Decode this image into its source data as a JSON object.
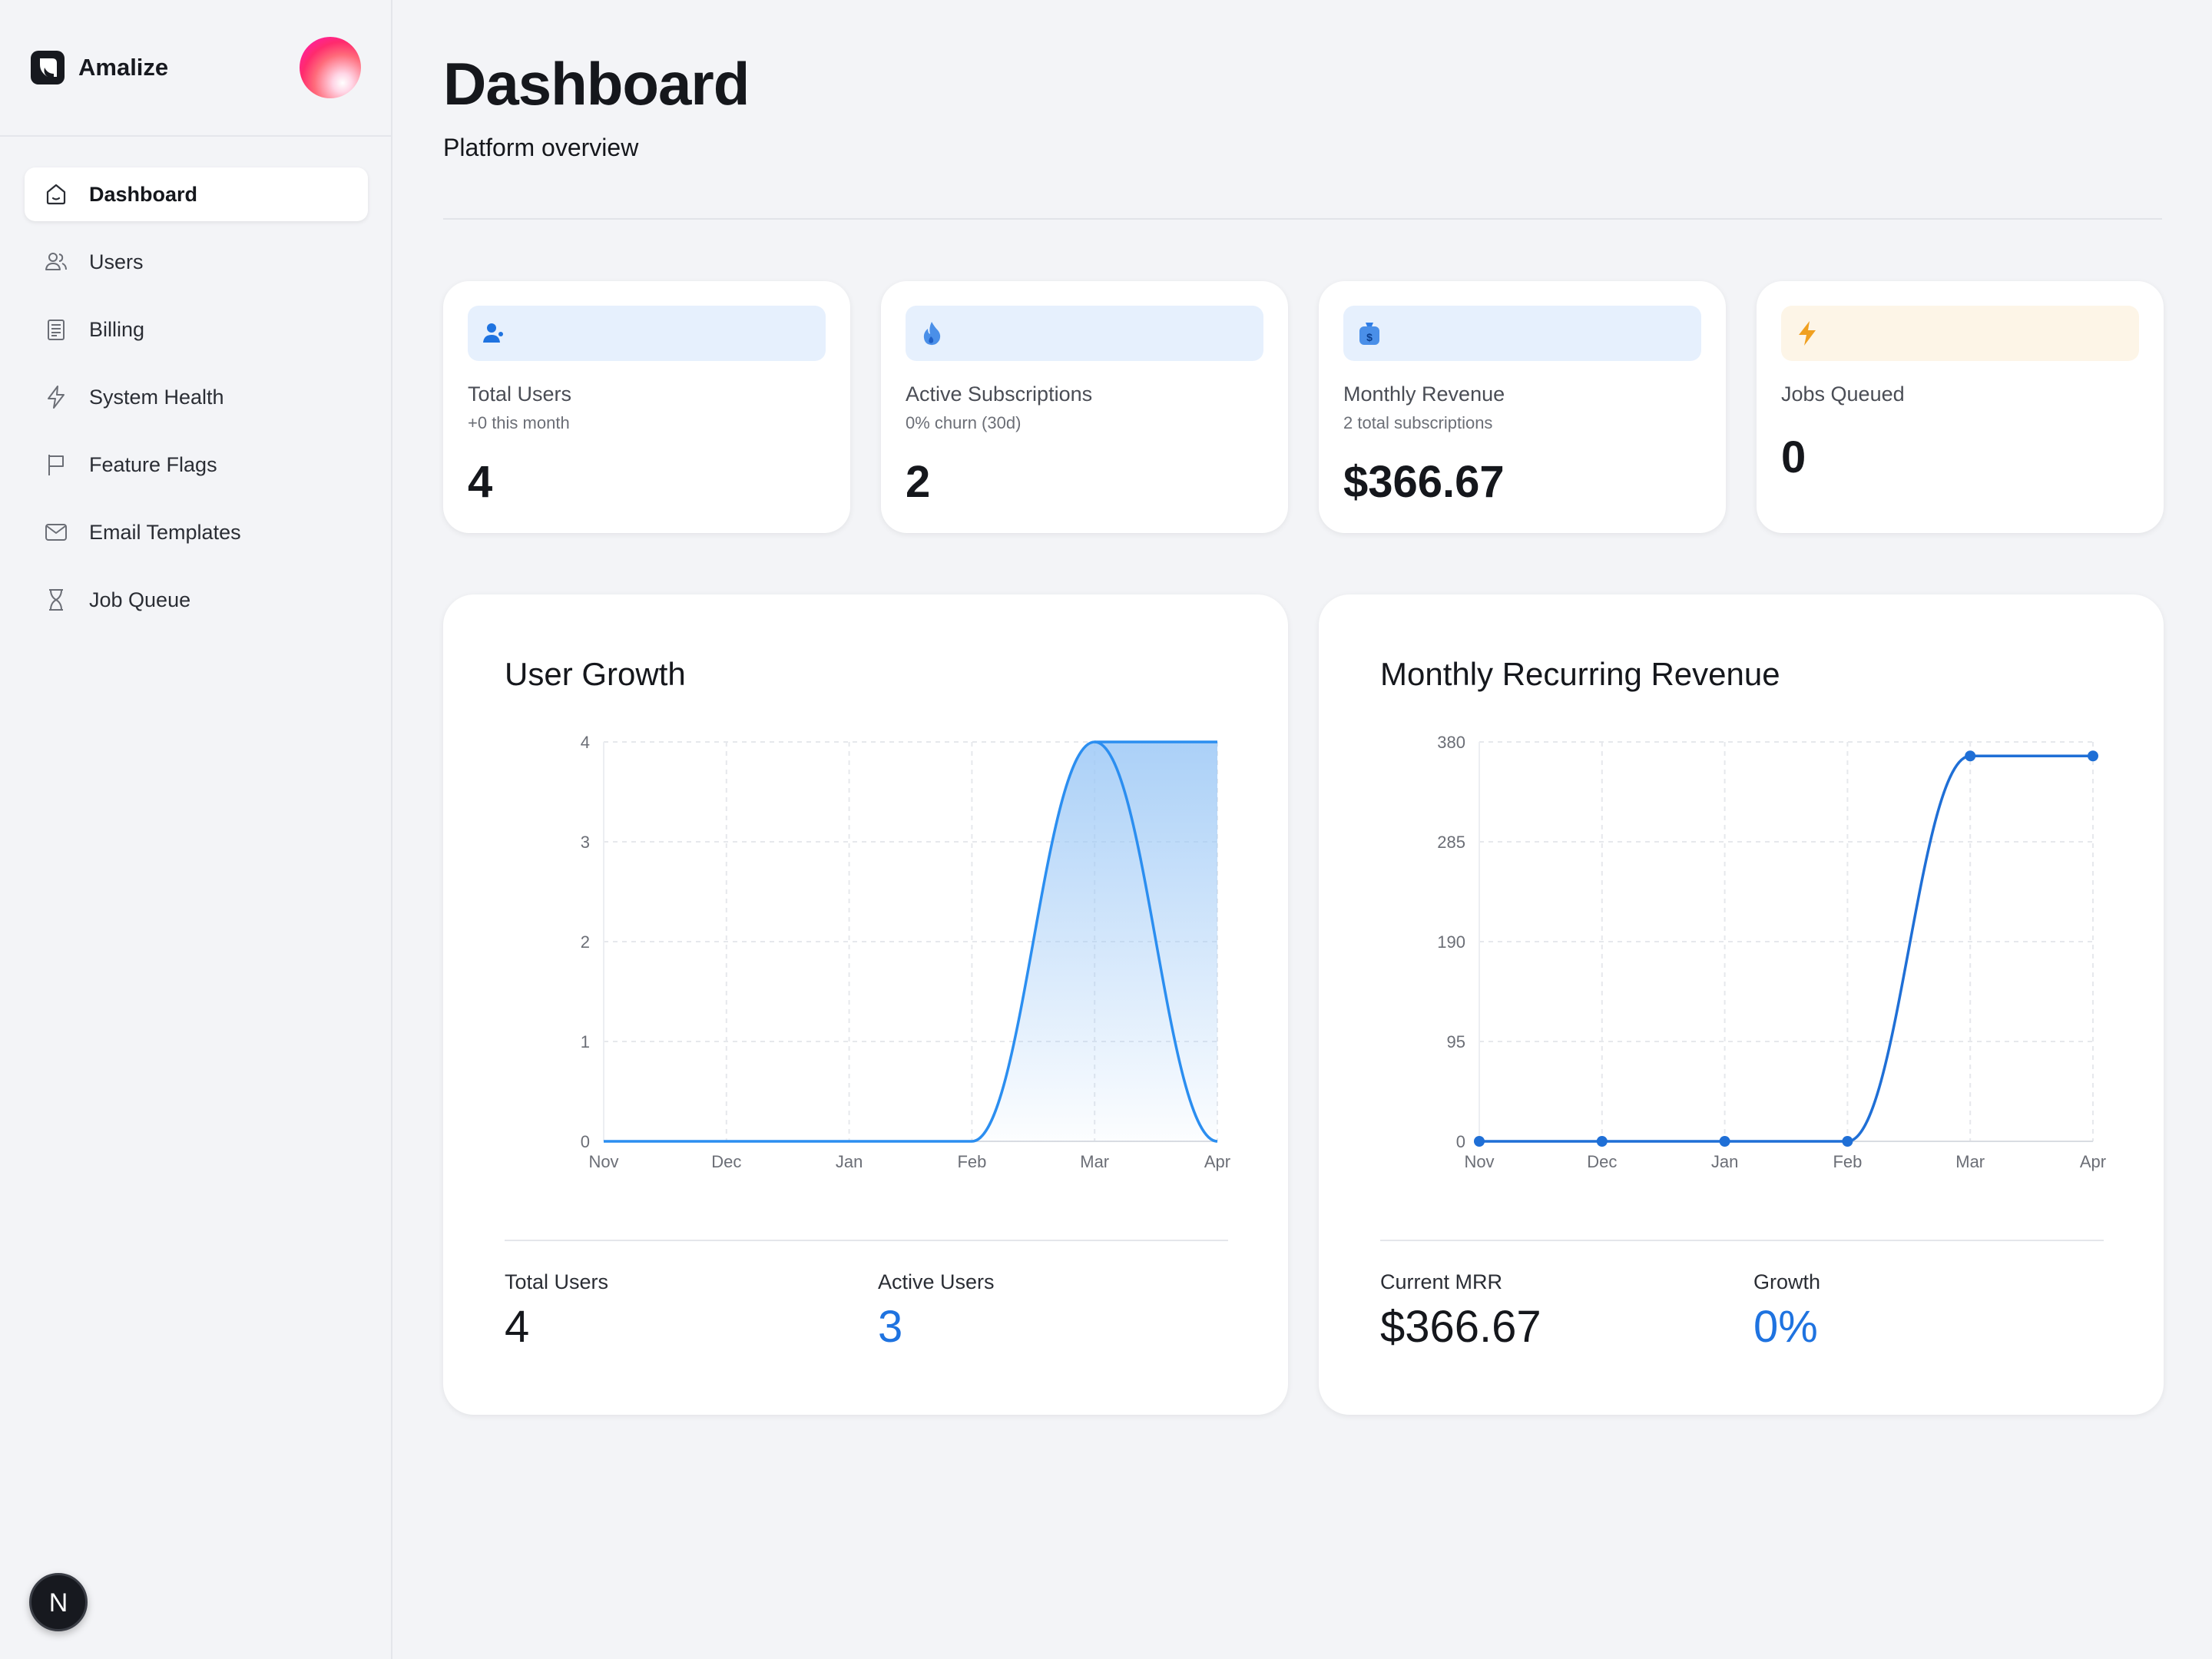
{
  "sidebar": {
    "brand": "Amalize",
    "items": [
      {
        "label": "Dashboard",
        "icon": "home-icon",
        "active": true
      },
      {
        "label": "Users",
        "icon": "users-icon"
      },
      {
        "label": "Billing",
        "icon": "receipt-icon"
      },
      {
        "label": "System Health",
        "icon": "bolt-icon"
      },
      {
        "label": "Feature Flags",
        "icon": "flag-icon"
      },
      {
        "label": "Email Templates",
        "icon": "mail-icon"
      },
      {
        "label": "Job Queue",
        "icon": "hourglass-icon"
      }
    ],
    "badge_letter": "N"
  },
  "header": {
    "title": "Dashboard",
    "subtitle": "Platform overview"
  },
  "stats": [
    {
      "label": "Total Users",
      "sub": "+0 this month",
      "value": "4",
      "icon": "user-icon",
      "accent": "#1f73e0"
    },
    {
      "label": "Active Subscriptions",
      "sub": "0% churn (30d)",
      "value": "2",
      "icon": "flame-icon",
      "accent": "#1f73e0"
    },
    {
      "label": "Monthly Revenue",
      "sub": "2 total subscriptions",
      "value": "$366.67",
      "icon": "money-bag-icon",
      "accent": "#1f73e0"
    },
    {
      "label": "Jobs Queued",
      "sub": "",
      "value": "0",
      "icon": "lightning-icon",
      "accent": "#f0a020"
    }
  ],
  "charts": {
    "user_growth": {
      "title": "User Growth",
      "footer": [
        {
          "label": "Total Users",
          "value": "4"
        },
        {
          "label": "Active Users",
          "value": "3"
        }
      ]
    },
    "mrr": {
      "title": "Monthly Recurring Revenue",
      "footer": [
        {
          "label": "Current MRR",
          "value": "$366.67"
        },
        {
          "label": "Growth",
          "value": "0%"
        }
      ]
    }
  },
  "chart_data": [
    {
      "type": "area",
      "title": "User Growth",
      "categories": [
        "Nov",
        "Dec",
        "Jan",
        "Feb",
        "Mar",
        "Apr"
      ],
      "yticks": [
        0,
        1,
        2,
        3,
        4
      ],
      "ylim": [
        0,
        4
      ],
      "series": [
        {
          "values": [
            0,
            0,
            0,
            0,
            4,
            0
          ],
          "color": "#2b8ef0"
        },
        {
          "values": [
            0,
            0,
            0,
            0,
            4,
            4
          ],
          "color": "#9cc8f6"
        }
      ],
      "grid": true
    },
    {
      "type": "line",
      "title": "Monthly Recurring Revenue",
      "categories": [
        "Nov",
        "Dec",
        "Jan",
        "Feb",
        "Mar",
        "Apr"
      ],
      "yticks": [
        0,
        95,
        190,
        285,
        380
      ],
      "ylim": [
        0,
        380
      ],
      "series": [
        {
          "values": [
            0,
            0,
            0,
            0,
            366.67,
            366.67
          ],
          "color": "#1f6fd6"
        }
      ],
      "grid": true
    }
  ]
}
